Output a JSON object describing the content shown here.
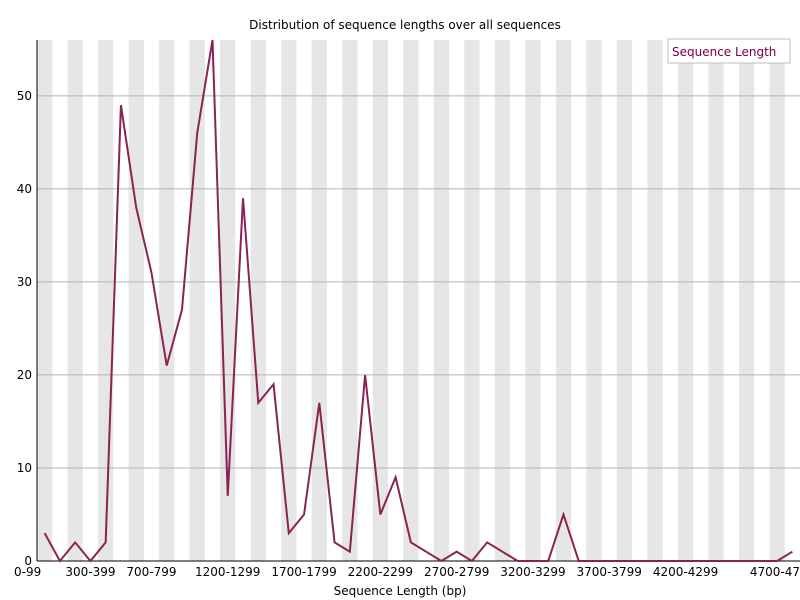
{
  "chart_data": {
    "type": "line",
    "title": "Distribution of sequence lengths over all sequences",
    "xlabel": "Sequence Length (bp)",
    "ylabel": "",
    "ylim": [
      0,
      56
    ],
    "yticks": [
      0,
      10,
      20,
      30,
      40,
      50
    ],
    "grid": "horizontal",
    "legend_position": "top-right",
    "line_color": "#8b2252",
    "categories": [
      "0-99",
      "100-199",
      "200-299",
      "300-399",
      "400-499",
      "500-599",
      "600-699",
      "700-799",
      "800-899",
      "900-999",
      "1000-1099",
      "1100-1199",
      "1200-1299",
      "1300-1399",
      "1400-1499",
      "1500-1599",
      "1600-1699",
      "1700-1799",
      "1800-1899",
      "1900-1999",
      "2000-2099",
      "2100-2199",
      "2200-2299",
      "2300-2399",
      "2400-2499",
      "2500-2599",
      "2600-2699",
      "2700-2799",
      "2800-2899",
      "2900-2999",
      "3000-3099",
      "3100-3199",
      "3200-3299",
      "3300-3399",
      "3400-3499",
      "3500-3599",
      "3600-3699",
      "3700-3799",
      "3800-3899",
      "3900-3999",
      "4000-4099",
      "4100-4199",
      "4200-4299",
      "4300-4399",
      "4400-4499",
      "4500-4599",
      "4600-4699",
      "4700-4799",
      "4800-4899",
      "4900-4999"
    ],
    "x_tick_labels": [
      "0-99",
      "300-399",
      "700-799",
      "1200-1299",
      "1700-1799",
      "2200-2299",
      "2700-2799",
      "3200-3299",
      "3700-3799",
      "4200-4299",
      "4700-47"
    ],
    "series": [
      {
        "name": "Sequence Length",
        "values": [
          3,
          0,
          2,
          0,
          2,
          49,
          38,
          31,
          21,
          27,
          46,
          56,
          7,
          39,
          17,
          19,
          3,
          5,
          17,
          2,
          1,
          20,
          5,
          9,
          2,
          1,
          0,
          1,
          0,
          2,
          1,
          0,
          0,
          0,
          5,
          0,
          0,
          0,
          0,
          0,
          0,
          0,
          0,
          0,
          0,
          0,
          0,
          0,
          0,
          1
        ]
      }
    ]
  }
}
